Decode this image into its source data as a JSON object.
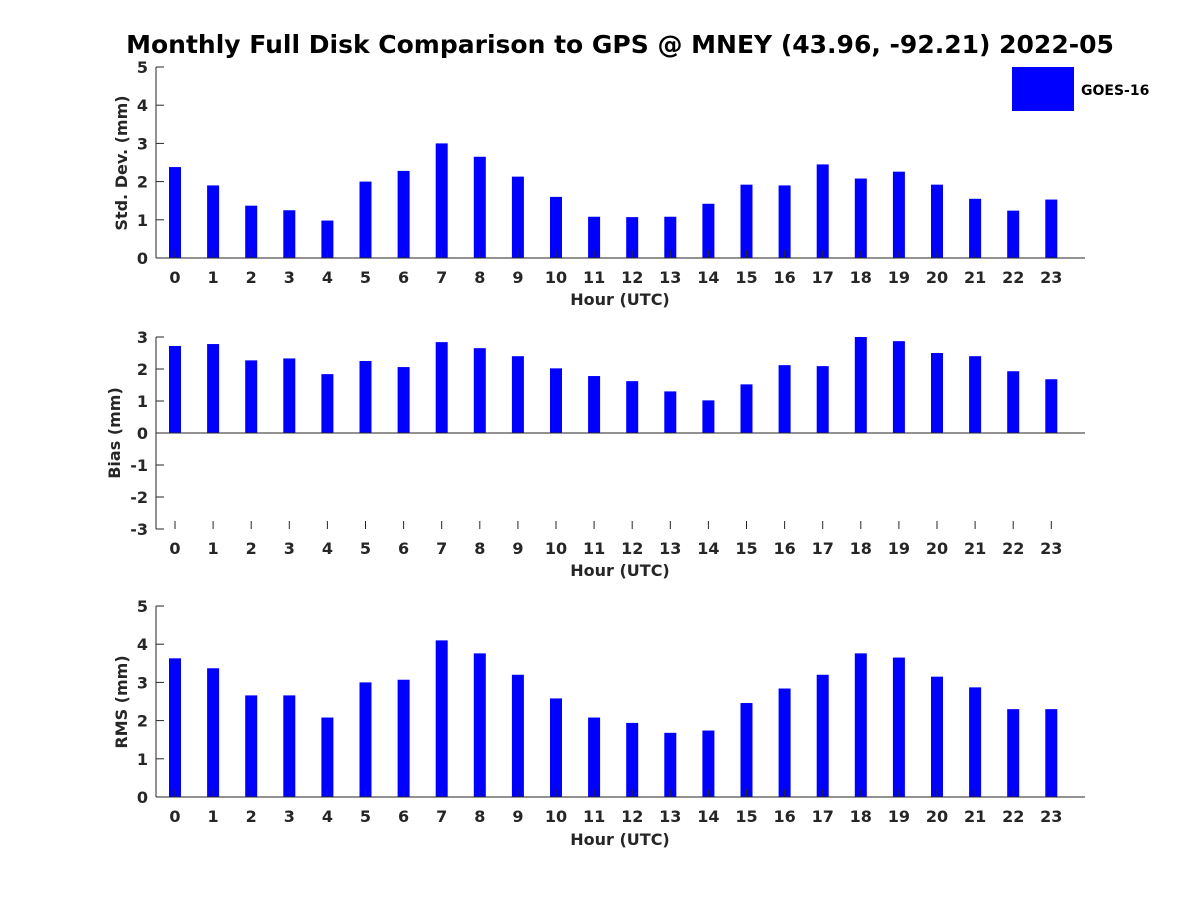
{
  "title": "Monthly Full Disk Comparison to GPS @ MNEY (43.96, -92.21) 2022-05",
  "legend": {
    "label": "GOES-16",
    "color": "#0000ff"
  },
  "chart_data": [
    {
      "type": "bar",
      "title": "Monthly Full Disk Comparison to GPS @ MNEY (43.96, -92.21) 2022-05",
      "xlabel": "Hour (UTC)",
      "ylabel": "Std. Dev. (mm)",
      "ylim": [
        0,
        5
      ],
      "yticks": [
        0,
        1,
        2,
        3,
        4,
        5
      ],
      "categories": [
        "0",
        "1",
        "2",
        "3",
        "4",
        "5",
        "6",
        "7",
        "8",
        "9",
        "10",
        "11",
        "12",
        "13",
        "14",
        "15",
        "16",
        "17",
        "18",
        "19",
        "20",
        "21",
        "22",
        "23"
      ],
      "series": [
        {
          "name": "GOES-16",
          "color": "#0000ff",
          "values": [
            2.38,
            1.9,
            1.37,
            1.25,
            0.98,
            2.0,
            2.28,
            3.0,
            2.65,
            2.13,
            1.6,
            1.08,
            1.07,
            1.08,
            1.42,
            1.92,
            1.9,
            2.45,
            2.08,
            2.26,
            1.92,
            1.55,
            1.24,
            1.53
          ]
        }
      ],
      "legend": "top-right",
      "grid": false
    },
    {
      "type": "bar",
      "xlabel": "Hour (UTC)",
      "ylabel": "Bias (mm)",
      "ylim": [
        -3,
        3
      ],
      "yticks": [
        -3,
        -2,
        -1,
        0,
        1,
        2,
        3
      ],
      "categories": [
        "0",
        "1",
        "2",
        "3",
        "4",
        "5",
        "6",
        "7",
        "8",
        "9",
        "10",
        "11",
        "12",
        "13",
        "14",
        "15",
        "16",
        "17",
        "18",
        "19",
        "20",
        "21",
        "22",
        "23"
      ],
      "series": [
        {
          "name": "GOES-16",
          "color": "#0000ff",
          "values": [
            2.72,
            2.78,
            2.27,
            2.33,
            1.84,
            2.25,
            2.06,
            2.84,
            2.65,
            2.4,
            2.02,
            1.78,
            1.62,
            1.3,
            1.02,
            1.52,
            2.12,
            2.09,
            3.0,
            2.87,
            2.5,
            2.4,
            1.93,
            1.68
          ]
        }
      ],
      "grid": false
    },
    {
      "type": "bar",
      "xlabel": "Hour (UTC)",
      "ylabel": "RMS (mm)",
      "ylim": [
        0,
        5
      ],
      "yticks": [
        0,
        1,
        2,
        3,
        4,
        5
      ],
      "categories": [
        "0",
        "1",
        "2",
        "3",
        "4",
        "5",
        "6",
        "7",
        "8",
        "9",
        "10",
        "11",
        "12",
        "13",
        "14",
        "15",
        "16",
        "17",
        "18",
        "19",
        "20",
        "21",
        "22",
        "23"
      ],
      "series": [
        {
          "name": "GOES-16",
          "color": "#0000ff",
          "values": [
            3.63,
            3.37,
            2.66,
            2.66,
            2.08,
            3.0,
            3.07,
            4.1,
            3.76,
            3.2,
            2.58,
            2.08,
            1.94,
            1.68,
            1.74,
            2.46,
            2.84,
            3.2,
            3.76,
            3.65,
            3.15,
            2.87,
            2.3,
            2.3
          ]
        }
      ],
      "grid": false
    }
  ]
}
